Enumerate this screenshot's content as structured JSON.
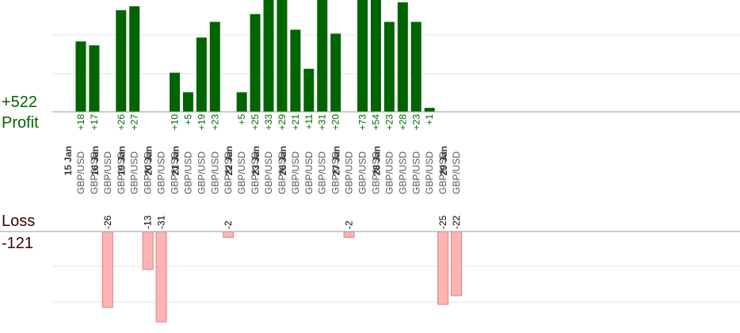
{
  "summary": {
    "profit_total": "+522",
    "profit_label": "Profit",
    "loss_label": "Loss",
    "loss_total": "-121"
  },
  "colors": {
    "profit_bar": "#006400",
    "profit_text": "#006400",
    "loss_bar": "#ffb3b3",
    "loss_bar_border": "#e08080",
    "loss_text": "#000000",
    "axis_line": "#999999",
    "grid_line": "#e6e6e6",
    "date_text": "#333333",
    "pair_text": "#555555"
  },
  "chart_data": {
    "type": "bar",
    "profit_range": [
      0,
      28
    ],
    "loss_range": [
      0,
      31
    ],
    "trades": [
      {
        "date": "15 Jan",
        "pair": "GBP/USD",
        "value": 18
      },
      {
        "date": "",
        "pair": "GBP/USD",
        "value": 17
      },
      {
        "date": "16 Jan",
        "pair": "GBP/USD",
        "value": -26
      },
      {
        "date": "",
        "pair": "GBP/USD",
        "value": 26
      },
      {
        "date": "19 Jan",
        "pair": "GBP/USD",
        "value": 27
      },
      {
        "date": "",
        "pair": "GBP/USD",
        "value": -13
      },
      {
        "date": "20 Jan",
        "pair": "GBP/USD",
        "value": -31
      },
      {
        "date": "",
        "pair": "GBP/USD",
        "value": 10
      },
      {
        "date": "21 Jan",
        "pair": "GBP/USD",
        "value": 5
      },
      {
        "date": "",
        "pair": "GBP/USD",
        "value": 19
      },
      {
        "date": "",
        "pair": "GBP/USD",
        "value": 23
      },
      {
        "date": "",
        "pair": "GBP/USD",
        "value": -2
      },
      {
        "date": "22 Jan",
        "pair": "GBP/USD",
        "value": 5
      },
      {
        "date": "",
        "pair": "GBP/USD",
        "value": 25
      },
      {
        "date": "23 Jan",
        "pair": "GBP/USD",
        "value": 33
      },
      {
        "date": "",
        "pair": "GBP/USD",
        "value": 29
      },
      {
        "date": "26 Jan",
        "pair": "GBP/USD",
        "value": 21
      },
      {
        "date": "",
        "pair": "GBP/USD",
        "value": 11
      },
      {
        "date": "",
        "pair": "GBP/USD",
        "value": 31
      },
      {
        "date": "",
        "pair": "GBP/USD",
        "value": 20
      },
      {
        "date": "27 Jan",
        "pair": "GBP/USD",
        "value": -2
      },
      {
        "date": "",
        "pair": "GBP/USD",
        "value": 73
      },
      {
        "date": "",
        "pair": "GBP/USD",
        "value": 54
      },
      {
        "date": "28 Jan",
        "pair": "GBP/USD",
        "value": 23
      },
      {
        "date": "",
        "pair": "GBP/USD",
        "value": 28
      },
      {
        "date": "",
        "pair": "GBP/USD",
        "value": 23
      },
      {
        "date": "",
        "pair": "GBP/USD",
        "value": 1
      },
      {
        "date": "",
        "pair": "GBP/USD",
        "value": -25
      },
      {
        "date": "29 Jan",
        "pair": "GBP/USD",
        "value": -22
      }
    ]
  }
}
